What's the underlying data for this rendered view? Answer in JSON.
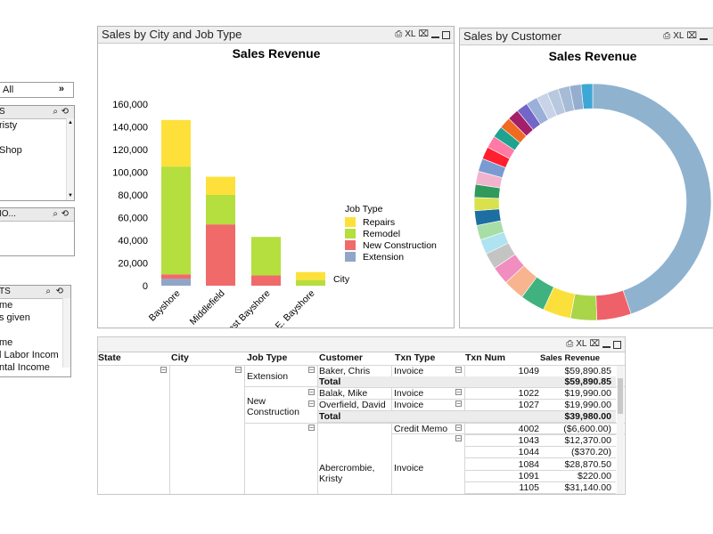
{
  "left_panel": {
    "select_all_value": "All",
    "listbox1": {
      "header": "S",
      "items": [
        "risty",
        "",
        "Shop"
      ]
    },
    "listbox2": {
      "header": "IO..."
    },
    "listbox3": {
      "header": "TS",
      "items": [
        "me",
        "s given",
        "",
        "me",
        "l Labor Incom",
        "ntal Income"
      ]
    }
  },
  "panel_city": {
    "title": "Sales by City and Job Type",
    "xl_label": "XL"
  },
  "panel_customer": {
    "title": "Sales by Customer",
    "xl_label": "XL"
  },
  "chart_data": [
    {
      "type": "bar",
      "stacked": true,
      "title": "Sales Revenue",
      "xlabel": "City",
      "ylabel": "",
      "categories": [
        "Bayshore",
        "Middlefield",
        "East Bayshore",
        "E. Bayshore"
      ],
      "ylim": [
        0,
        160000
      ],
      "yticks": [
        "0",
        "20,000",
        "40,000",
        "60,000",
        "80,000",
        "100,000",
        "120,000",
        "140,000",
        "160,000"
      ],
      "legend_title": "Job Type",
      "legend_position": "right",
      "series": [
        {
          "name": "Extension",
          "color": "#8fa6c8",
          "values": [
            6000,
            0,
            0,
            0
          ]
        },
        {
          "name": "New Construction",
          "color": "#f06a6a",
          "values": [
            4000,
            54000,
            9000,
            0
          ]
        },
        {
          "name": "Remodel",
          "color": "#b5de3f",
          "values": [
            95000,
            26000,
            34000,
            5000
          ]
        },
        {
          "name": "Repairs",
          "color": "#fde13a",
          "values": [
            41000,
            16000,
            0,
            7000
          ]
        }
      ]
    },
    {
      "type": "pie",
      "donut": true,
      "title": "Sales Revenue",
      "values": [
        40,
        4.2,
        3.2,
        3.4,
        3.0,
        2.6,
        2.2,
        2.0,
        1.8,
        1.8,
        1.8,
        1.6,
        1.6,
        1.6,
        1.6,
        1.5,
        1.5,
        1.4,
        1.4,
        1.4,
        1.4,
        1.4,
        1.4,
        1.4,
        1.4,
        1.4,
        1.4
      ],
      "colors": [
        "#8fb2cf",
        "#ef6168",
        "#a9d549",
        "#fbe03c",
        "#3fb27f",
        "#f8b48f",
        "#f28dbf",
        "#c4c4c4",
        "#aee3ef",
        "#a7dea7",
        "#1c6fa0",
        "#d9e14d",
        "#2f9a5c",
        "#f2b3ce",
        "#7a9bd2",
        "#ff1f2f",
        "#ff7aa5",
        "#1fa38e",
        "#f06a22",
        "#a31f6a",
        "#7366c8",
        "#9ab0d8",
        "#c9d3e8",
        "#b8c8de",
        "#a6bbd6",
        "#94aed0",
        "#3da7d6"
      ]
    }
  ],
  "table": {
    "xl_label": "XL",
    "headers": {
      "state": "State",
      "city": "City",
      "job_type": "Job Type",
      "customer": "Customer",
      "txn_type": "Txn Type",
      "txn_num": "Txn Num",
      "sales_revenue": "Sales Revenue"
    },
    "job_types": [
      "Extension",
      "New Construction"
    ],
    "rows": [
      {
        "customer": "Baker, Chris",
        "txn_type": "Invoice",
        "txn_num": "1049",
        "revenue": "$59,890.85"
      },
      {
        "customer": "Total",
        "txn_type": "",
        "txn_num": "",
        "revenue": "$59,890.85",
        "total": true
      },
      {
        "customer": "Balak, Mike",
        "txn_type": "Invoice",
        "txn_num": "1022",
        "revenue": "$19,990.00"
      },
      {
        "customer": "Overfield, David",
        "txn_type": "Invoice",
        "txn_num": "1027",
        "revenue": "$19,990.00"
      },
      {
        "customer": "Total",
        "txn_type": "",
        "txn_num": "",
        "revenue": "$39,980.00",
        "total": true
      }
    ],
    "abercrombie": {
      "customer": "Abercrombie, Kristy",
      "txn_types": [
        "Credit Memo",
        "Invoice"
      ],
      "txns": [
        {
          "num": "4002",
          "revenue": "($6,600.00)"
        },
        {
          "num": "1043",
          "revenue": "$12,370.00"
        },
        {
          "num": "1044",
          "revenue": "($370.20)"
        },
        {
          "num": "1084",
          "revenue": "$28,870.50"
        },
        {
          "num": "1091",
          "revenue": "$220.00"
        },
        {
          "num": "1105",
          "revenue": "$31,140.00"
        }
      ]
    }
  }
}
